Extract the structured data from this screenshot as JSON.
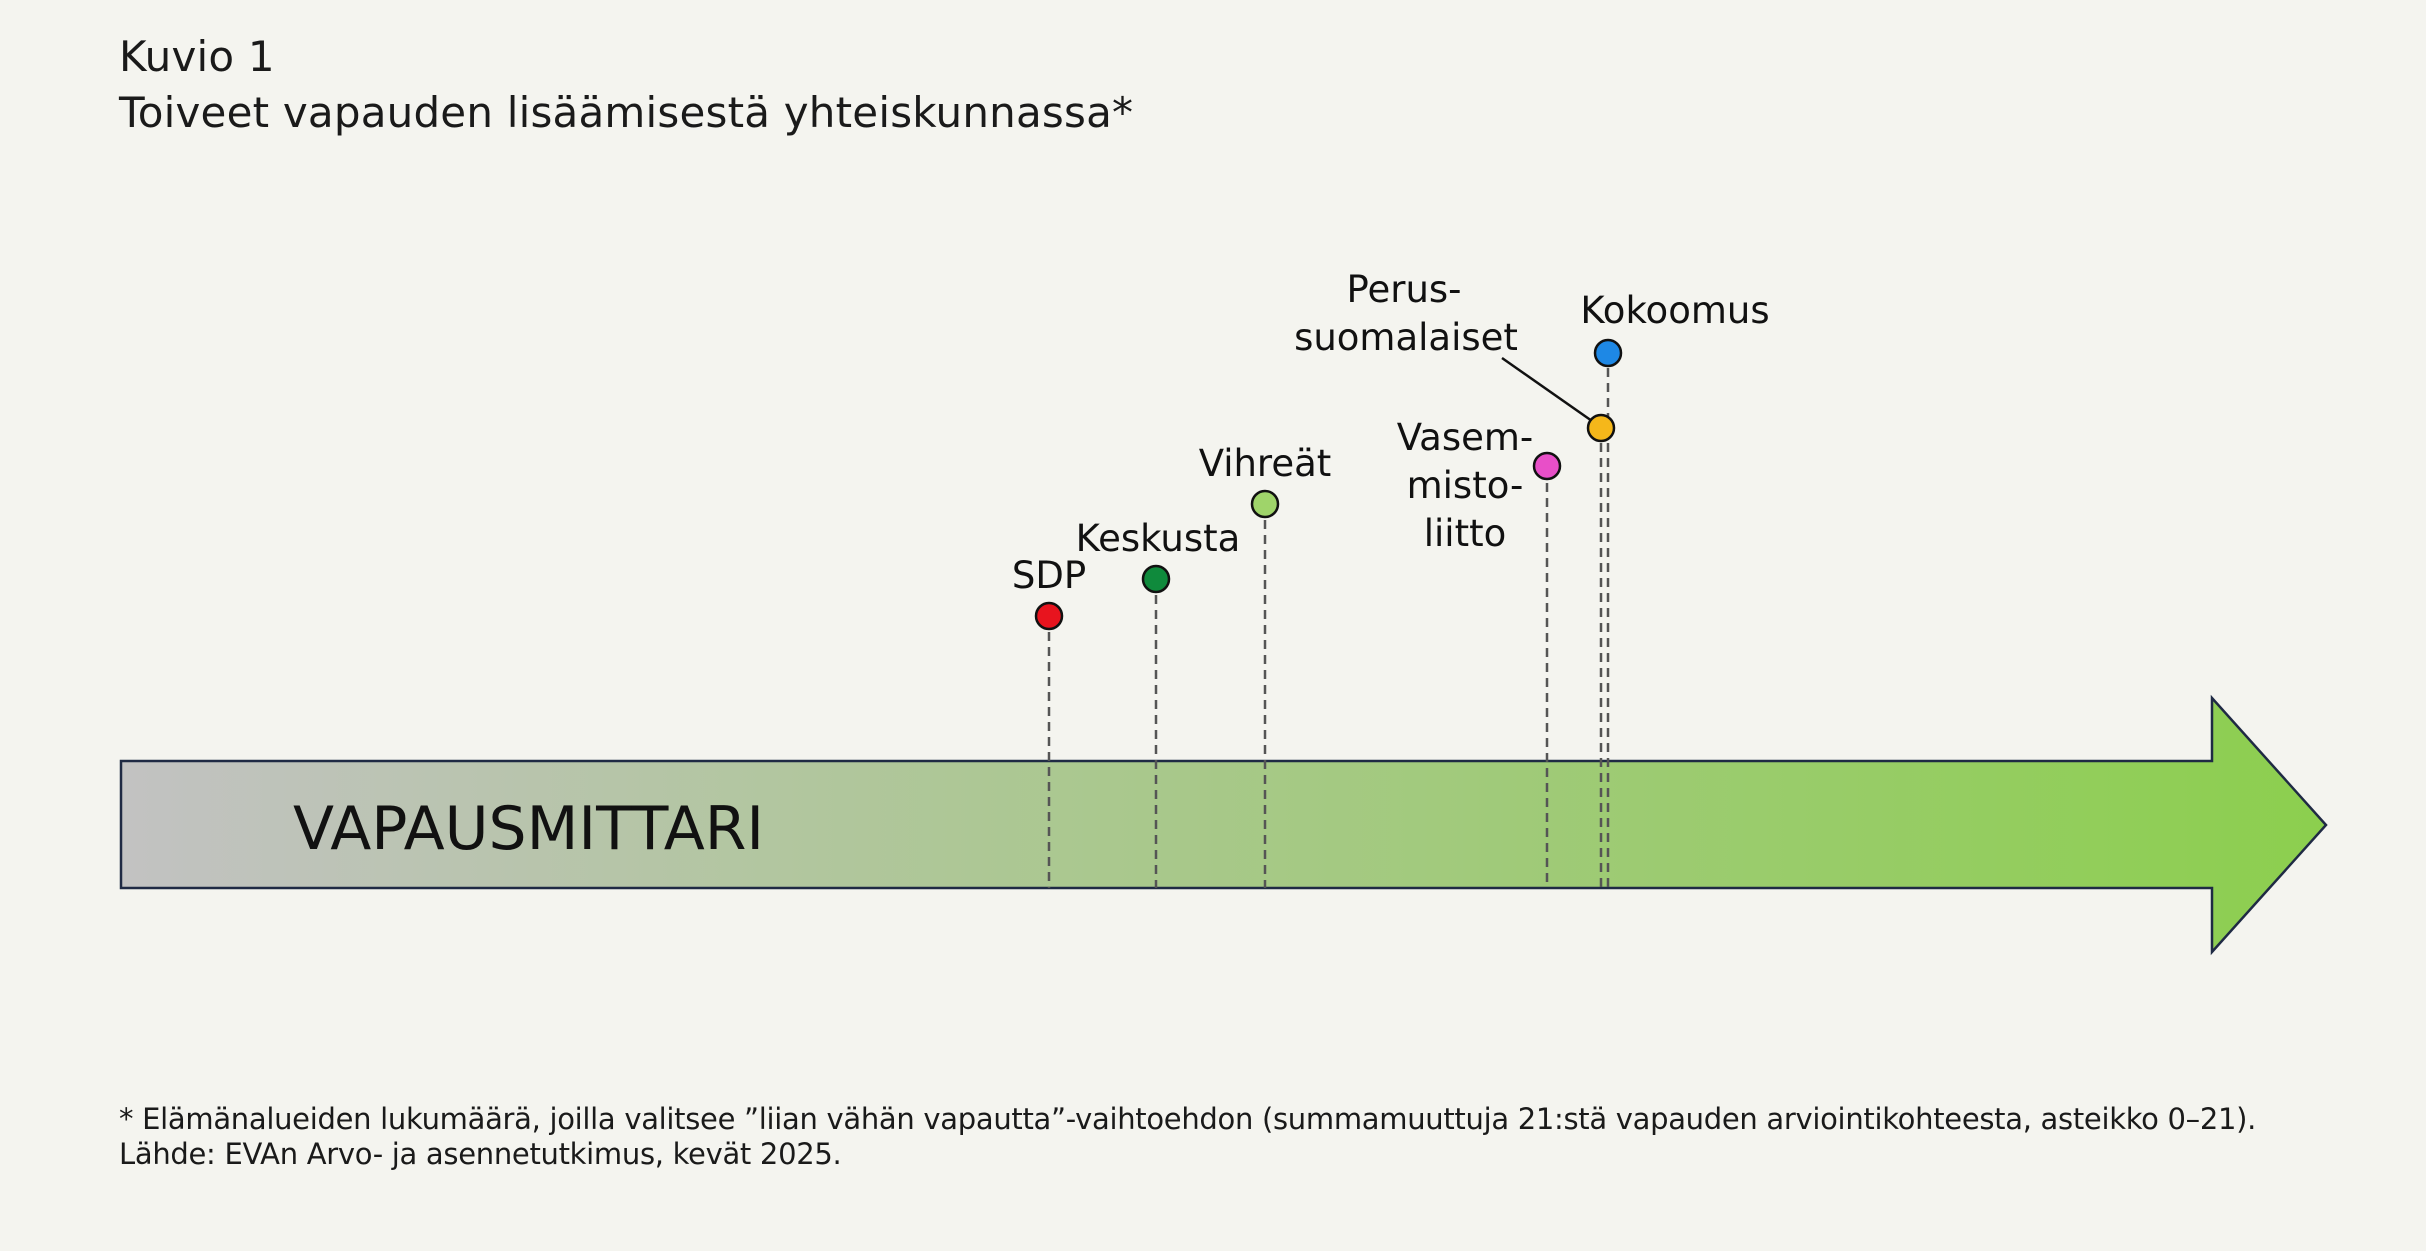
{
  "title": "Kuvio 1",
  "subtitle": "Toiveet vapauden lisäämisestä yhteiskunnassa*",
  "arrow_label": "VAPAUSMITTARI",
  "parties": [
    {
      "id": "sdp",
      "label_lines": [
        "SDP"
      ],
      "color": "#e8141e"
    },
    {
      "id": "keskusta",
      "label_lines": [
        "Keskusta"
      ],
      "color": "#0f8a3c"
    },
    {
      "id": "vihreat",
      "label_lines": [
        "Vihreät"
      ],
      "color": "#9fd46a"
    },
    {
      "id": "vasemmistoliitto",
      "label_lines": [
        "Vasem-",
        "misto-",
        "liitto"
      ],
      "color": "#e84fc8"
    },
    {
      "id": "perussuomalaiset",
      "label_lines": [
        "Perus-",
        "suomalaiset"
      ],
      "color": "#f5b71a"
    },
    {
      "id": "kokoomus",
      "label_lines": [
        "Kokoomus"
      ],
      "color": "#1e88e5"
    }
  ],
  "colors": {
    "arrow_start": "#c2c2c2",
    "arrow_end": "#8ccf4e",
    "outline": "#1f2a44",
    "dash": "#555555"
  },
  "footnote": "* Elämänalueiden lukumäärä, joilla valitsee ”liian vähän vapautta”-vaihtoehdon (summamuuttuja 21:stä vapauden arviointikohteesta, asteikko 0–21).",
  "source": "Lähde: EVAn Arvo- ja asennetutkimus, kevät 2025."
}
